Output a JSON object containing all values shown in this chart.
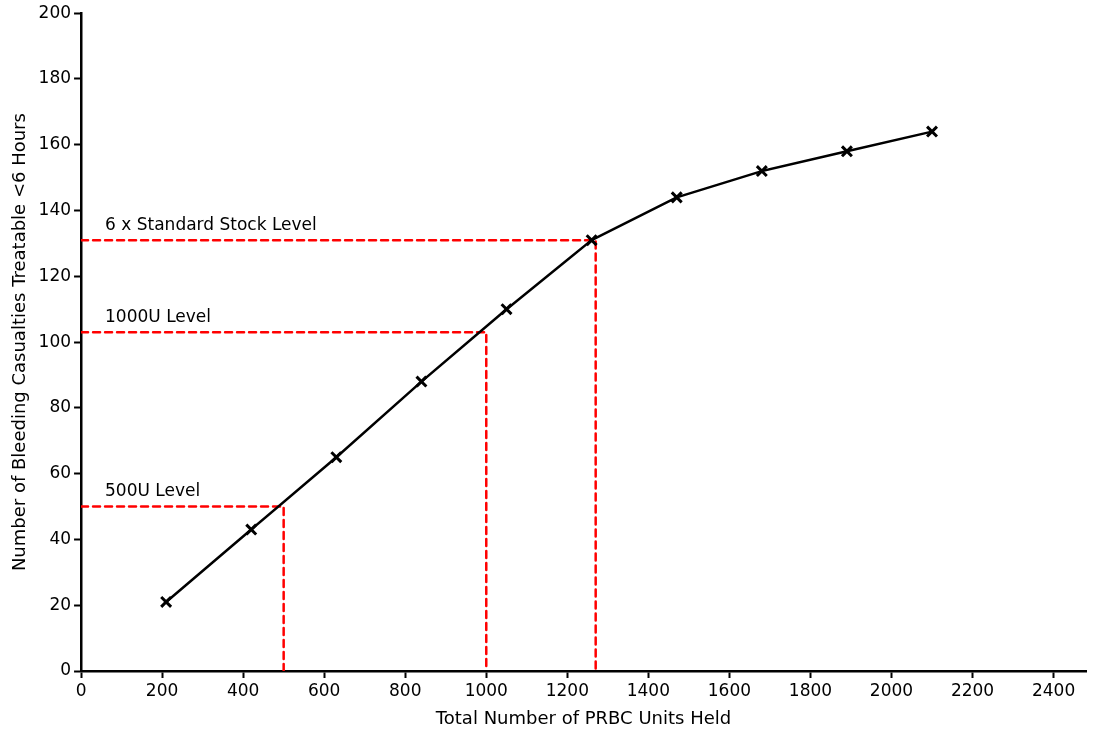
{
  "chart_data": {
    "type": "line",
    "xlabel": "Total Number of PRBC Units Held",
    "ylabel": "Number of Bleeding Casualties Treatable <6 Hours",
    "xlim": [
      0,
      2480
    ],
    "xticks": [
      0,
      200,
      400,
      600,
      800,
      1000,
      1200,
      1400,
      1600,
      1800,
      2000,
      2200,
      2400
    ],
    "ylim": [
      0,
      200
    ],
    "yticks": [
      0,
      20,
      40,
      60,
      80,
      100,
      120,
      140,
      160,
      180,
      200
    ],
    "grid": false,
    "legend": false,
    "series": [
      {
        "color": "#000000",
        "marker": "cross",
        "line_style": "solid",
        "x": [
          210,
          420,
          630,
          840,
          1050,
          1260,
          1470,
          1680,
          1890,
          2100
        ],
        "values": [
          21,
          43,
          65,
          88,
          110,
          131,
          144,
          152,
          158,
          164
        ]
      },
      {
        "name": "500U Level",
        "color": "#ff0000",
        "marker": "none",
        "line_style": "dashed",
        "x": [
          0,
          500,
          500
        ],
        "values": [
          50,
          50,
          0
        ]
      },
      {
        "name": "1000U Level",
        "color": "#ff0000",
        "marker": "none",
        "line_style": "dashed",
        "x": [
          0,
          1000,
          1000
        ],
        "values": [
          103,
          103,
          0
        ]
      },
      {
        "name": "6 x Standard Stock Level",
        "color": "#ff0000",
        "marker": "none",
        "line_style": "dashed",
        "x": [
          0,
          1270,
          1270
        ],
        "values": [
          131,
          131,
          0
        ]
      }
    ]
  }
}
